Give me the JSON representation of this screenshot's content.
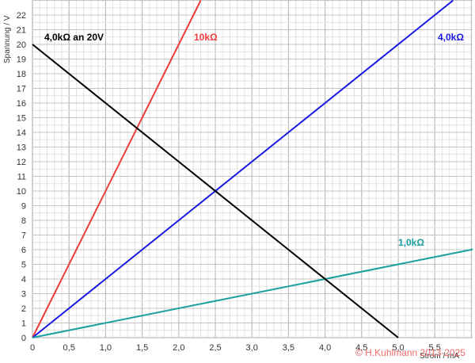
{
  "chart_data": {
    "type": "line",
    "title": "",
    "xlabel": "Strom / mA",
    "ylabel": "Spannung / V",
    "xlim": [
      0,
      6.02
    ],
    "ylim": [
      0,
      23.0
    ],
    "grid": true,
    "x_ticks": [
      "0",
      "0,5",
      "1,0",
      "1,5",
      "2,0",
      "2,5",
      "3,0",
      "3,5",
      "4,0",
      "4,5",
      "5,0",
      "5,5"
    ],
    "y_ticks": [
      "0",
      "1",
      "2",
      "3",
      "4",
      "5",
      "6",
      "7",
      "8",
      "9",
      "10",
      "11",
      "12",
      "13",
      "14",
      "15",
      "16",
      "17",
      "18",
      "19",
      "20",
      "21",
      "22"
    ],
    "series": [
      {
        "name": "10kΩ",
        "color": "#f03c3c",
        "x": [
          0,
          2.3
        ],
        "y": [
          0,
          23
        ]
      },
      {
        "name": "4,0kΩ",
        "color": "#1a1ae6",
        "x": [
          0,
          5.75
        ],
        "y": [
          0,
          23
        ]
      },
      {
        "name": "1,0kΩ",
        "color": "#1aa0a0",
        "x": [
          0,
          6.02
        ],
        "y": [
          0,
          6.02
        ]
      },
      {
        "name": "4,0kΩ an 20V",
        "color": "#000000",
        "x": [
          0,
          5.0
        ],
        "y": [
          20,
          0
        ]
      }
    ],
    "annotations": [
      {
        "text": "4,0kΩ an 20V",
        "color": "#000000",
        "x": 0.15,
        "y": 20.8
      },
      {
        "text": "10kΩ",
        "color": "#f03c3c",
        "x": 2.2,
        "y": 20.8
      },
      {
        "text": "4,0kΩ",
        "color": "#1a1ae6",
        "x": 5.5,
        "y": 20.8
      },
      {
        "text": "1,0kΩ",
        "color": "#1aa0a0",
        "x": 5.0,
        "y": 6.6
      }
    ]
  },
  "labels": {
    "ylabel": "Spannung / V",
    "xlabel": "Strom / mA",
    "copyright": "© H.Kuhlmann 2013-2025",
    "series_10k": "10kΩ",
    "series_4k": "4,0kΩ",
    "series_1k": "1,0kΩ",
    "series_4k20": "4,0kΩ an 20V"
  }
}
